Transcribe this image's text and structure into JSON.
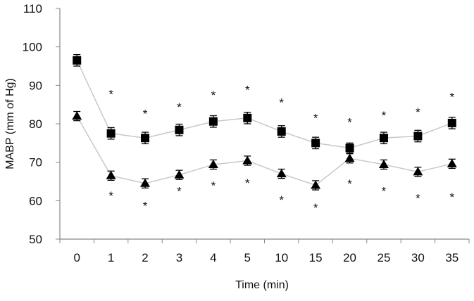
{
  "chart_data": {
    "type": "line",
    "xlabel": "Time (min)",
    "ylabel": "MABP (mm of Hg)",
    "ylim": [
      50,
      110
    ],
    "yticks": [
      50,
      60,
      70,
      80,
      90,
      100,
      110
    ],
    "categories": [
      "0",
      "1",
      "2",
      "3",
      "4",
      "5",
      "10",
      "15",
      "20",
      "25",
      "30",
      "35"
    ],
    "grid": false,
    "line_color": "#c8c8c8",
    "marker_color": "#000000",
    "series": [
      {
        "marker": "square",
        "values": [
          96.5,
          77.5,
          76.3,
          78.4,
          80.6,
          81.5,
          78.0,
          75.0,
          73.7,
          76.3,
          76.8,
          80.2
        ],
        "error": [
          1.5,
          1.5,
          1.5,
          1.5,
          1.5,
          1.5,
          1.5,
          1.5,
          1.3,
          1.5,
          1.5,
          1.5
        ],
        "significance_marker": "*",
        "significance_y": [
          null,
          88.1,
          83.0,
          84.8,
          87.9,
          89.2,
          85.9,
          81.9,
          80.8,
          82.6,
          83.5,
          87.4
        ]
      },
      {
        "marker": "triangle",
        "values": [
          82.0,
          66.5,
          64.5,
          66.7,
          69.4,
          70.4,
          67.0,
          64.0,
          71.0,
          69.4,
          67.5,
          69.6
        ],
        "error": [
          1.2,
          1.2,
          1.2,
          1.2,
          1.2,
          1.2,
          1.2,
          1.2,
          1.2,
          1.2,
          1.2,
          1.2
        ],
        "significance_marker": "*",
        "significance_y": [
          null,
          61.7,
          59.1,
          62.9,
          64.4,
          65.0,
          60.6,
          58.6,
          64.8,
          62.9,
          61.1,
          61.3
        ]
      }
    ]
  }
}
